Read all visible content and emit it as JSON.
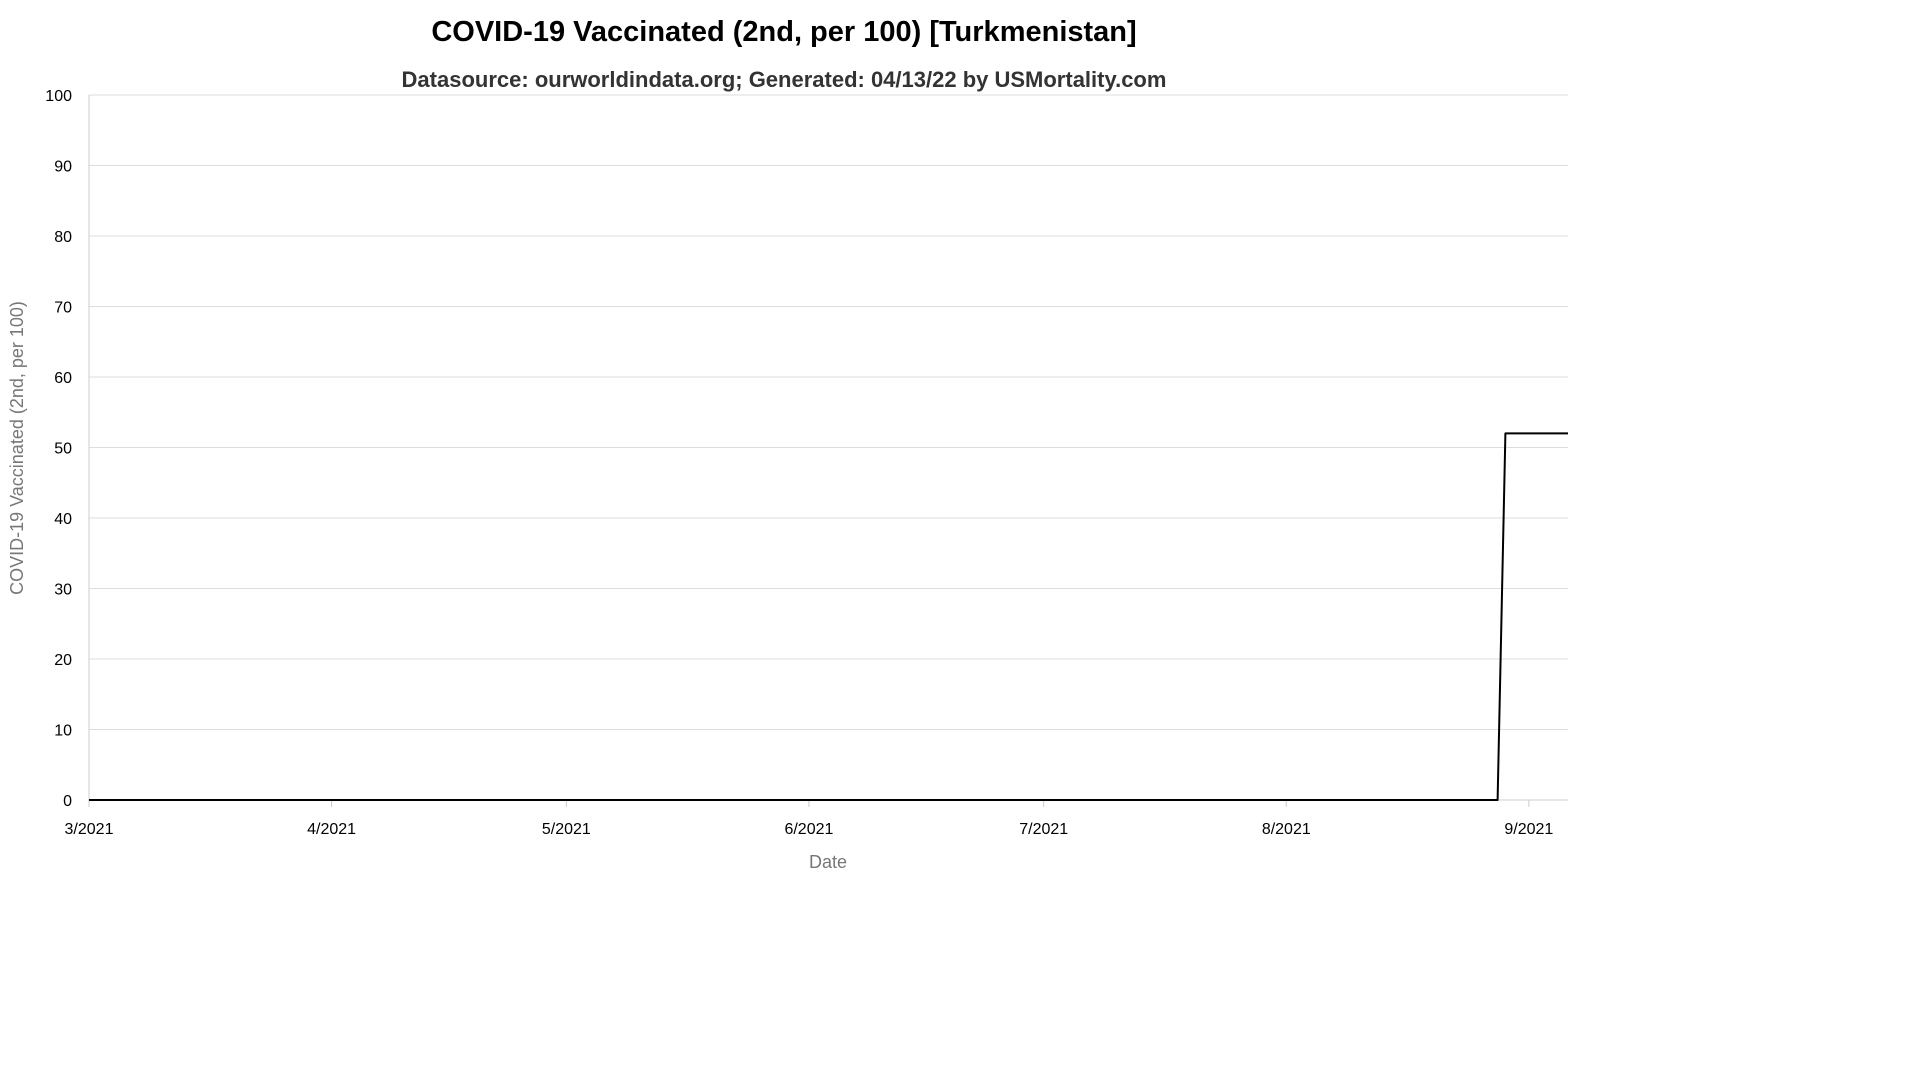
{
  "chart_data": {
    "type": "line",
    "title": "COVID-19 Vaccinated (2nd, per 100) [Turkmenistan]",
    "subtitle": "Datasource: ourworldindata.org; Generated: 04/13/22 by USMortality.com",
    "xlabel": "Date",
    "ylabel": "COVID-19 Vaccinated (2nd, per 100)",
    "ylim": [
      0,
      100
    ],
    "yticks": [
      0,
      10,
      20,
      30,
      40,
      50,
      60,
      70,
      80,
      90,
      100
    ],
    "xlim": [
      "2021-03-01",
      "2021-09-06"
    ],
    "xticks": [
      {
        "date": "2021-03-01",
        "label": "3/2021"
      },
      {
        "date": "2021-04-01",
        "label": "4/2021"
      },
      {
        "date": "2021-05-01",
        "label": "5/2021"
      },
      {
        "date": "2021-06-01",
        "label": "6/2021"
      },
      {
        "date": "2021-07-01",
        "label": "7/2021"
      },
      {
        "date": "2021-08-01",
        "label": "8/2021"
      },
      {
        "date": "2021-09-01",
        "label": "9/2021"
      }
    ],
    "grid": true,
    "series": [
      {
        "color": "#000000",
        "points": [
          {
            "x": "2021-03-01",
            "y": 0
          },
          {
            "x": "2021-08-28",
            "y": 0
          },
          {
            "x": "2021-08-29",
            "y": 52
          },
          {
            "x": "2021-08-30",
            "y": 52
          },
          {
            "x": "2021-09-06",
            "y": 52
          }
        ]
      }
    ]
  }
}
